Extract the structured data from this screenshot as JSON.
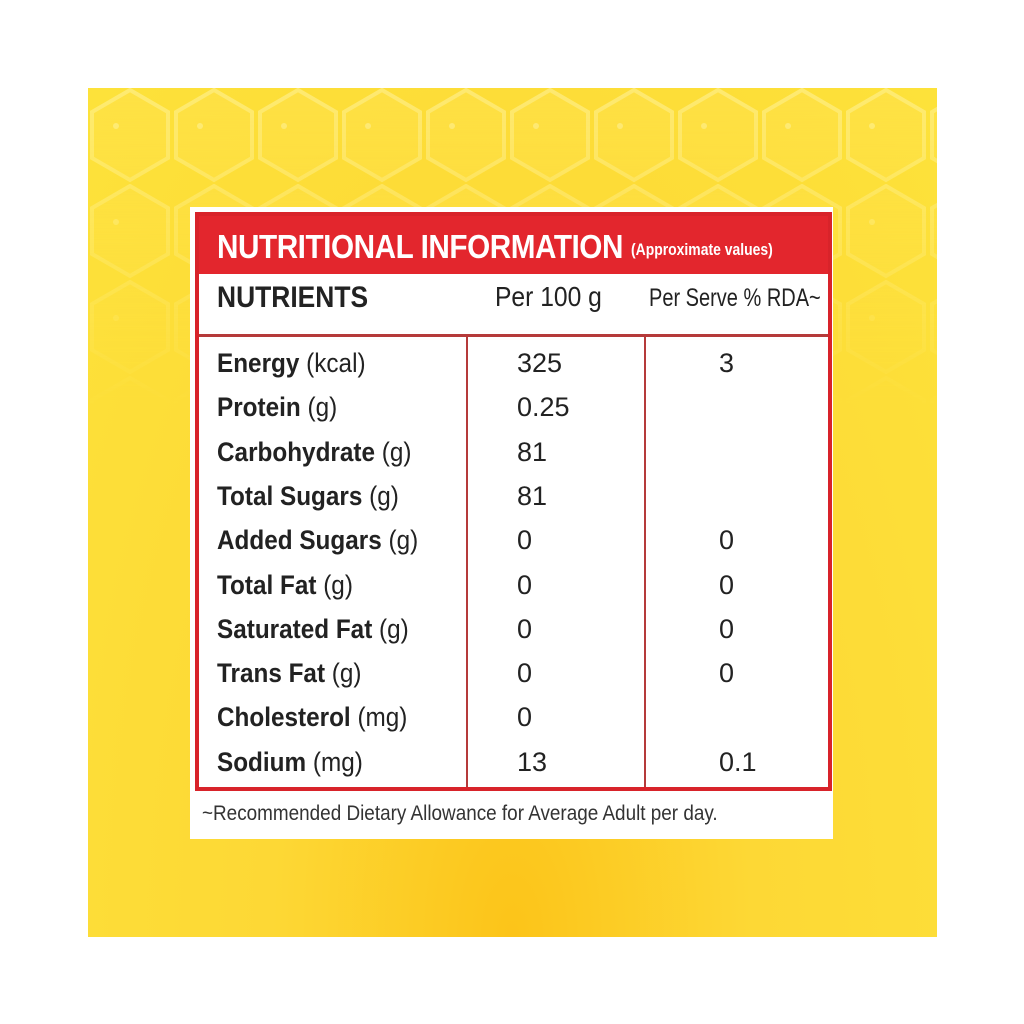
{
  "label": {
    "title": "NUTRITIONAL INFORMATION",
    "subtitle": "(Approximate values)",
    "columns": [
      "NUTRIENTS",
      "Per 100 g",
      "Per Serve % RDA~"
    ],
    "rows": [
      {
        "name": "Energy",
        "unit": "(kcal)",
        "per100g": "325",
        "rda": "3"
      },
      {
        "name": "Protein",
        "unit": "(g)",
        "per100g": "0.25",
        "rda": ""
      },
      {
        "name": "Carbohydrate",
        "unit": "(g)",
        "per100g": "81",
        "rda": ""
      },
      {
        "name": "Total Sugars",
        "unit": "(g)",
        "per100g": "81",
        "rda": ""
      },
      {
        "name": "Added Sugars",
        "unit": "(g)",
        "per100g": "0",
        "rda": "0"
      },
      {
        "name": "Total Fat",
        "unit": "(g)",
        "per100g": "0",
        "rda": "0"
      },
      {
        "name": "Saturated Fat",
        "unit": "(g)",
        "per100g": "0",
        "rda": "0"
      },
      {
        "name": "Trans Fat",
        "unit": "(g)",
        "per100g": "0",
        "rda": "0"
      },
      {
        "name": "Cholesterol",
        "unit": "(mg)",
        "per100g": "0",
        "rda": ""
      },
      {
        "name": "Sodium",
        "unit": "(mg)",
        "per100g": "13",
        "rda": "0.1"
      }
    ],
    "footnote": "~Recommended Dietary Allowance for Average Adult per day."
  },
  "colors": {
    "header_red": "#e3262d",
    "background_yellow": "#fdd835"
  }
}
